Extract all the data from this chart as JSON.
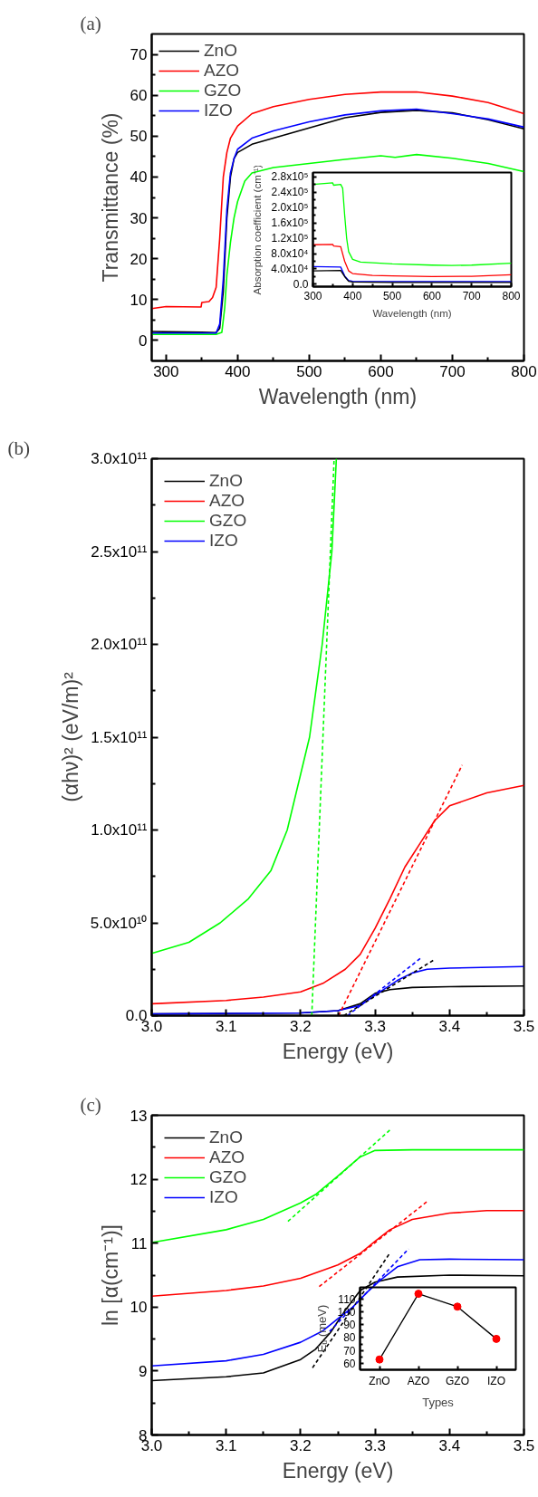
{
  "chart_data": [
    {
      "type": "line",
      "title": "(a)",
      "xlabel": "Wavelength (nm)",
      "ylabel": "Transmittance (%)",
      "xlim": [
        280,
        800
      ],
      "ylim": [
        -5,
        75
      ],
      "xticks": [
        300,
        400,
        500,
        600,
        700,
        800
      ],
      "yticks": [
        0,
        10,
        20,
        30,
        40,
        50,
        60,
        70
      ],
      "legend": "top left",
      "grid": false,
      "series": [
        {
          "name": "ZnO",
          "color": "#000000",
          "x": [
            280,
            350,
            370,
            375,
            380,
            385,
            390,
            395,
            400,
            420,
            450,
            500,
            550,
            600,
            650,
            700,
            750,
            800
          ],
          "values": [
            2.2,
            2.0,
            1.9,
            3,
            12,
            30,
            40,
            44.5,
            46,
            48,
            49.5,
            52,
            54.5,
            55.8,
            56.3,
            55.7,
            54,
            51.8
          ]
        },
        {
          "name": "AZO",
          "color": "#ff0000",
          "x": [
            280,
            300,
            349,
            350,
            360,
            365,
            370,
            375,
            380,
            385,
            390,
            400,
            420,
            450,
            500,
            550,
            600,
            650,
            700,
            750,
            800
          ],
          "values": [
            7.8,
            8.3,
            8.2,
            9.3,
            9.5,
            10.5,
            13,
            25,
            40,
            46,
            49.5,
            52.5,
            55.5,
            57.2,
            59,
            60.2,
            60.8,
            60.8,
            59.8,
            58.2,
            55.5
          ]
        },
        {
          "name": "GZO",
          "color": "#00ff00",
          "x": [
            280,
            370,
            378,
            382,
            385,
            390,
            395,
            400,
            410,
            420,
            450,
            500,
            550,
            600,
            620,
            650,
            700,
            750,
            800
          ],
          "values": [
            1.5,
            1.5,
            2,
            8,
            16,
            24,
            30,
            34,
            39,
            41,
            42.3,
            43.3,
            44.3,
            45.2,
            44.8,
            45.5,
            44.6,
            43.3,
            41.3
          ]
        },
        {
          "name": "IZO",
          "color": "#0000ff",
          "x": [
            280,
            370,
            375,
            380,
            385,
            390,
            395,
            400,
            420,
            450,
            500,
            550,
            600,
            650,
            700,
            750,
            800
          ],
          "values": [
            1.8,
            1.8,
            4,
            15,
            32,
            41,
            44.5,
            46.8,
            49.5,
            51.3,
            53.5,
            55.2,
            56.2,
            56.6,
            55.5,
            54.2,
            52.2
          ]
        }
      ]
    },
    {
      "type": "line",
      "xlabel": "Wavelength (nm)",
      "ylabel": "Absorption coefficient (cm⁻¹)",
      "xlim": [
        300,
        800
      ],
      "ylim": [
        -6000,
        291000
      ],
      "xticks": [
        300,
        400,
        500,
        600,
        700,
        800
      ],
      "yticks": [
        {
          "value": 0,
          "label": "0.0"
        },
        {
          "value": 40000,
          "label": "4.0x10⁴"
        },
        {
          "value": 80000,
          "label": "8.0x10⁴"
        },
        {
          "value": 120000,
          "label": "1.2x10⁵"
        },
        {
          "value": 160000,
          "label": "1.6x10⁵"
        },
        {
          "value": 200000,
          "label": "2.0x10⁵"
        },
        {
          "value": 240000,
          "label": "2.4x10⁵"
        },
        {
          "value": 280000,
          "label": "2.8x10⁵"
        }
      ],
      "grid": false,
      "series": [
        {
          "color": "#00ff00",
          "x": [
            300,
            350,
            352,
            370,
            375,
            380,
            385,
            390,
            400,
            420,
            500,
            600,
            650,
            700,
            800
          ],
          "values": [
            260000,
            264000,
            258000,
            260000,
            250000,
            180000,
            120000,
            85000,
            65000,
            58000,
            53000,
            50000,
            49000,
            50000,
            55000
          ]
        },
        {
          "color": "#ff0000",
          "x": [
            300,
            350,
            352,
            370,
            380,
            390,
            400,
            450,
            500,
            600,
            700,
            800
          ],
          "values": [
            103000,
            104000,
            100000,
            98000,
            60000,
            35000,
            28000,
            23000,
            22000,
            20000,
            21000,
            25000
          ]
        },
        {
          "color": "#0000ff",
          "x": [
            300,
            370,
            380,
            390,
            400,
            500,
            800
          ],
          "values": [
            46000,
            45000,
            22000,
            10000,
            8000,
            7000,
            7000
          ]
        },
        {
          "color": "#000000",
          "x": [
            300,
            370,
            380,
            390,
            400,
            500,
            800
          ],
          "values": [
            35000,
            36000,
            20000,
            8000,
            6000,
            5000,
            5000
          ]
        }
      ]
    },
    {
      "type": "line",
      "title": "(b)",
      "xlabel": "Energy (eV)",
      "ylabel": "(αhν)² (eV/m)²",
      "xlim": [
        3.0,
        3.5
      ],
      "ylim": [
        0,
        300000000000
      ],
      "xticks": [
        {
          "value": 3.0,
          "label": "3.0"
        },
        3.1,
        3.2,
        3.3,
        3.4,
        3.5
      ],
      "yticks": [
        {
          "value": 0,
          "label": "0.0"
        },
        {
          "value": 50000000000,
          "label": "5.0x10¹⁰"
        },
        {
          "value": 100000000000,
          "label": "1.0x10¹¹"
        },
        {
          "value": 150000000000,
          "label": "1.5x10¹¹"
        },
        {
          "value": 200000000000,
          "label": "2.0x10¹¹"
        },
        {
          "value": 250000000000,
          "label": "2.5x10¹¹"
        },
        {
          "value": 300000000000,
          "label": "3.0x10¹¹"
        }
      ],
      "legend": "top left",
      "grid": false,
      "series": [
        {
          "name": "ZnO",
          "color": "#000000",
          "x": [
            3.0,
            3.2,
            3.25,
            3.28,
            3.3,
            3.32,
            3.35,
            3.4,
            3.5
          ],
          "values": [
            900000000,
            1500000000,
            2700000000,
            6400000000,
            12000000000,
            14000000000,
            15200000000,
            15600000000,
            16000000000
          ]
        },
        {
          "name": "AZO",
          "color": "#ff0000",
          "x": [
            3.0,
            3.1,
            3.15,
            3.2,
            3.23,
            3.26,
            3.28,
            3.3,
            3.32,
            3.34,
            3.36,
            3.38,
            3.4,
            3.45,
            3.5
          ],
          "values": [
            6400000000,
            8200000000,
            10000000000,
            12800000000,
            17400000000,
            25000000000,
            33000000000,
            47000000000,
            63000000000,
            80000000000,
            92500000000,
            105000000000,
            113000000000,
            120000000000,
            124000000000
          ]
        },
        {
          "name": "GZO",
          "color": "#00ff00",
          "x": [
            3.0,
            3.05,
            3.092,
            3.13,
            3.16,
            3.182,
            3.2,
            3.212,
            3.229,
            3.242,
            3.248
          ],
          "values": [
            33500000000,
            39500000000,
            50000000000,
            63000000000,
            78000000000,
            100000000000,
            130000000000,
            150000000000,
            200000000000,
            250000000000,
            300000000000
          ]
        },
        {
          "name": "IZO",
          "color": "#0000ff",
          "x": [
            3.0,
            3.2,
            3.25,
            3.28,
            3.3,
            3.33,
            3.35,
            3.37,
            3.4,
            3.5
          ],
          "values": [
            900000000,
            1500000000,
            2700000000,
            5500000000,
            11000000000,
            19000000000,
            23000000000,
            25000000000,
            25600000000,
            26500000000
          ]
        },
        {
          "color": "#00ff00",
          "line_style": "dashed",
          "x": [
            3.215,
            3.245
          ],
          "values": [
            0,
            300000000000
          ]
        },
        {
          "color": "#ff0000",
          "line_style": "dashed",
          "x": [
            3.251,
            3.417
          ],
          "values": [
            0,
            135000000000
          ]
        },
        {
          "color": "#000000",
          "line_style": "dashed",
          "x": [
            3.258,
            3.379
          ],
          "values": [
            0,
            30000000000
          ]
        },
        {
          "color": "#0000ff",
          "line_style": "dashed",
          "x": [
            3.263,
            3.363
          ],
          "values": [
            0,
            31500000000
          ]
        }
      ]
    },
    {
      "type": "line",
      "title": "(c)",
      "xlabel": "Energy (eV)",
      "ylabel": "ln [α(cm⁻¹)]",
      "xlim": [
        3.0,
        3.5
      ],
      "ylim": [
        8,
        13
      ],
      "xticks": [
        {
          "value": 3.0,
          "label": "3.0"
        },
        3.1,
        3.2,
        3.3,
        3.4,
        3.5
      ],
      "yticks": [
        8,
        9,
        10,
        11,
        12,
        13
      ],
      "legend": "top left",
      "grid": false,
      "series": [
        {
          "name": "ZnO",
          "color": "#000000",
          "x": [
            3.0,
            3.1,
            3.15,
            3.2,
            3.22,
            3.24,
            3.26,
            3.28,
            3.3,
            3.33,
            3.4,
            3.5
          ],
          "values": [
            8.85,
            8.91,
            8.97,
            9.18,
            9.34,
            9.6,
            9.95,
            10.26,
            10.39,
            10.47,
            10.5,
            10.49
          ]
        },
        {
          "name": "AZO",
          "color": "#ff0000",
          "x": [
            3.0,
            3.1,
            3.15,
            3.2,
            3.25,
            3.28,
            3.3,
            3.32,
            3.35,
            3.4,
            3.45,
            3.5
          ],
          "values": [
            10.17,
            10.26,
            10.33,
            10.45,
            10.66,
            10.84,
            11.03,
            11.21,
            11.37,
            11.47,
            11.51,
            11.51
          ]
        },
        {
          "name": "GZO",
          "color": "#00ff00",
          "x": [
            3.0,
            3.1,
            3.15,
            3.2,
            3.22,
            3.25,
            3.28,
            3.3,
            3.35,
            3.5
          ],
          "values": [
            11.01,
            11.21,
            11.37,
            11.63,
            11.76,
            12.05,
            12.35,
            12.45,
            12.46,
            12.46
          ]
        },
        {
          "name": "IZO",
          "color": "#0000ff",
          "x": [
            3.0,
            3.1,
            3.15,
            3.2,
            3.23,
            3.25,
            3.27,
            3.29,
            3.31,
            3.33,
            3.36,
            3.4,
            3.5
          ],
          "values": [
            9.08,
            9.16,
            9.26,
            9.45,
            9.63,
            9.82,
            10.0,
            10.24,
            10.45,
            10.63,
            10.74,
            10.75,
            10.74
          ]
        },
        {
          "color": "#00ff00",
          "line_style": "dashed",
          "x": [
            3.183,
            3.32
          ],
          "values": [
            11.34,
            12.77
          ]
        },
        {
          "color": "#ff0000",
          "line_style": "dashed",
          "x": [
            3.225,
            3.372
          ],
          "values": [
            10.32,
            11.67
          ]
        },
        {
          "color": "#000000",
          "line_style": "dashed",
          "x": [
            3.216,
            3.319
          ],
          "values": [
            9.05,
            10.83
          ]
        },
        {
          "color": "#0000ff",
          "line_style": "dashed",
          "x": [
            3.239,
            3.345
          ],
          "values": [
            9.62,
            10.91
          ]
        }
      ]
    },
    {
      "type": "line",
      "xlabel": "Types",
      "ylabel": "Eᵤ (meV)",
      "categories": [
        "ZnO",
        "AZO",
        "GZO",
        "IZO"
      ],
      "ylim": [
        55,
        119
      ],
      "yticks": [
        60,
        70,
        80,
        90,
        100,
        110
      ],
      "grid": false,
      "series": [
        {
          "color": "#000000",
          "marker": "circle",
          "colors": [
            "#ff0000",
            "#ff0000",
            "#ff0000",
            "#ff0000"
          ],
          "values": [
            63,
            114,
            104,
            79
          ]
        }
      ]
    }
  ]
}
